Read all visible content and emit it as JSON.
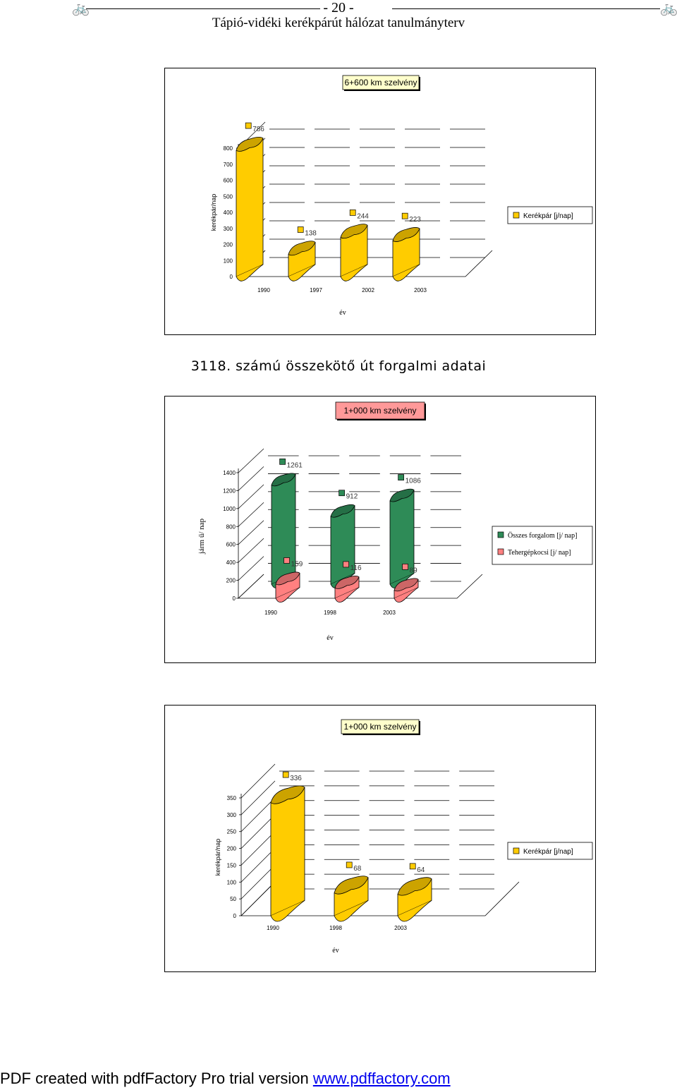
{
  "header": {
    "page_number": "- 20 -",
    "title": "Tápió-vidéki kerékpárút hálózat tanulmányterv",
    "bike_icon": "bicycle-icon"
  },
  "section_title": "3118. számú összekötő út forgalmi adatai",
  "charts": [
    {
      "chart_data": {
        "type": "bar",
        "title": "6+600 km szelvény",
        "title_bg": "#ffffcc",
        "ylabel": "kerékpár/nap",
        "xlabel": "év",
        "yticks": [
          "800",
          "700",
          "600",
          "500",
          "400",
          "300",
          "200",
          "100",
          "0"
        ],
        "categories": [
          "1990",
          "1997",
          "2002",
          "2003"
        ],
        "series": [
          {
            "name": "Kerékpár [j/nap]",
            "values": [
              786,
              138,
              244,
              223
            ],
            "color": "#ffcc00"
          }
        ],
        "ylim": [
          0,
          800
        ]
      }
    },
    {
      "chart_data": {
        "type": "bar",
        "title": "1+000 km szelvény",
        "title_bg": "#ff9999",
        "ylabel": "járm ű/ nap",
        "xlabel": "év",
        "yticks": [
          "1400",
          "1200",
          "1000",
          "800",
          "600",
          "400",
          "200",
          "0"
        ],
        "categories": [
          "1990",
          "1998",
          "2003"
        ],
        "series": [
          {
            "name": "Összes forgalom [j/ nap]",
            "values": [
              1261,
              912,
              1086
            ],
            "color": "#2e8b57"
          },
          {
            "name": "Tehergépkocsi [j/ nap]",
            "values": [
              159,
              116,
              89
            ],
            "color": "#ff8080"
          }
        ],
        "ylim": [
          0,
          1400
        ]
      }
    },
    {
      "chart_data": {
        "type": "bar",
        "title": "1+000 km szelvény",
        "title_bg": "#ffffcc",
        "ylabel": "kerékpár/nap",
        "xlabel": "év",
        "yticks": [
          "350",
          "300",
          "250",
          "200",
          "150",
          "100",
          "50",
          "0"
        ],
        "categories": [
          "1990",
          "1998",
          "2003"
        ],
        "series": [
          {
            "name": "Kerékpár [j/nap]",
            "values": [
              336,
              68,
              64
            ],
            "color": "#ffcc00"
          }
        ],
        "ylim": [
          0,
          350
        ]
      }
    }
  ],
  "footer": {
    "text": "PDF created with pdfFactory Pro trial version ",
    "link_text": "www.pdffactory.com"
  }
}
